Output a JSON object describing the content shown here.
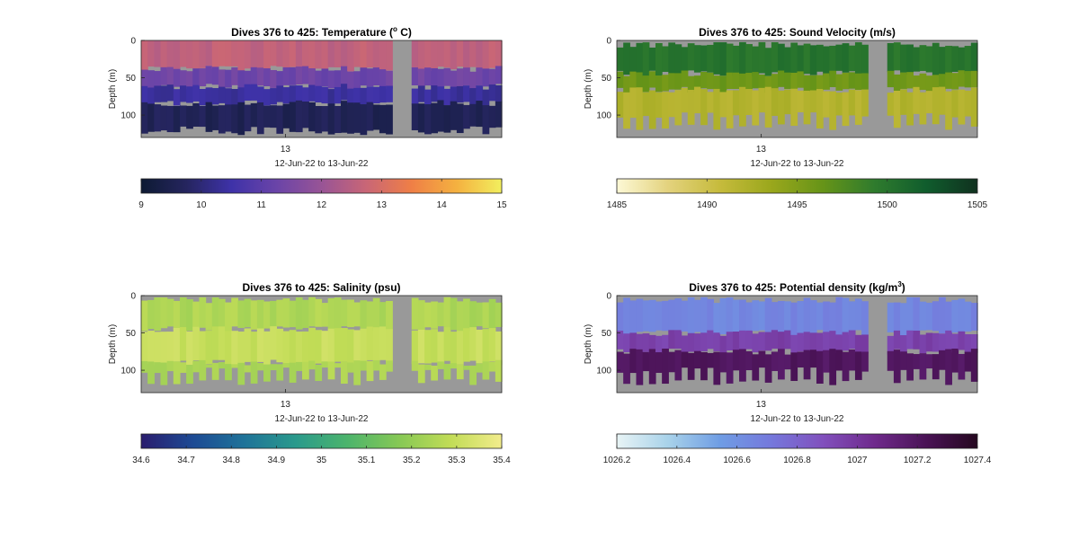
{
  "chart_data": [
    {
      "type": "heatmap",
      "title": "Dives 376 to 425: Temperature (",
      "title_sup": "o",
      "title_end": " C)",
      "ylabel": "Depth (m)",
      "ylim": [
        0,
        130
      ],
      "y_ticks": [
        0,
        50,
        100
      ],
      "x_ticks": [
        "13"
      ],
      "x_tick_pos": 0.4,
      "xlabel": "12-Jun-22 to 13-Jun-22",
      "colorbar": {
        "min": 9,
        "max": 15,
        "ticks": [
          "9",
          "10",
          "11",
          "12",
          "13",
          "14",
          "15"
        ],
        "colors": [
          "#0d1a33",
          "#25255e",
          "#3e32a8",
          "#6a44a8",
          "#985496",
          "#c96676",
          "#ef7f46",
          "#f4b140",
          "#f2ef5e"
        ]
      },
      "layers": [
        {
          "depth_top": 0,
          "depth_bottom": 38,
          "value": 12.6
        },
        {
          "depth_top": 38,
          "depth_bottom": 62,
          "value": 11.3
        },
        {
          "depth_top": 62,
          "depth_bottom": 84,
          "value": 10.4
        },
        {
          "depth_top": 84,
          "depth_bottom": 130,
          "value": 9.6
        }
      ],
      "gap": [
        0.7,
        0.74
      ]
    },
    {
      "type": "heatmap",
      "title": "Dives 376 to 425: Sound Velocity (m/s)",
      "title_sup": "",
      "title_end": "",
      "ylabel": "Depth (m)",
      "ylim": [
        0,
        130
      ],
      "y_ticks": [
        0,
        50,
        100
      ],
      "x_ticks": [
        "13"
      ],
      "x_tick_pos": 0.4,
      "xlabel": "12-Jun-22 to 13-Jun-22",
      "colorbar": {
        "min": 1485,
        "max": 1505,
        "ticks": [
          "1485",
          "1490",
          "1495",
          "1500",
          "1505"
        ],
        "colors": [
          "#fdf9d6",
          "#e3d27d",
          "#c6bb3c",
          "#9aa71c",
          "#669418",
          "#2f7b2d",
          "#105d2d",
          "#10311f"
        ]
      },
      "layers": [
        {
          "depth_top": 0,
          "depth_bottom": 44,
          "value": 1500
        },
        {
          "depth_top": 44,
          "depth_bottom": 66,
          "value": 1496
        },
        {
          "depth_top": 66,
          "depth_bottom": 130,
          "value": 1492
        }
      ],
      "gap": [
        0.7,
        0.74
      ]
    },
    {
      "type": "heatmap",
      "title": "Dives 376 to 425: Salinity (psu)",
      "title_sup": "",
      "title_end": "",
      "ylabel": "Depth (m)",
      "ylim": [
        0,
        130
      ],
      "y_ticks": [
        0,
        50,
        100
      ],
      "x_ticks": [
        "13"
      ],
      "x_tick_pos": 0.4,
      "xlabel": "12-Jun-22 to 13-Jun-22",
      "colorbar": {
        "min": 34.6,
        "max": 35.4,
        "ticks": [
          "34.6",
          "34.7",
          "34.8",
          "34.9",
          "35",
          "35.1",
          "35.2",
          "35.3",
          "35.4"
        ],
        "colors": [
          "#2a1d6e",
          "#1d4a94",
          "#1f7399",
          "#2a9a8c",
          "#4cb46c",
          "#86c855",
          "#c1dc56",
          "#f2ec8c"
        ]
      },
      "layers": [
        {
          "depth_top": 0,
          "depth_bottom": 45,
          "value": 35.25
        },
        {
          "depth_top": 45,
          "depth_bottom": 90,
          "value": 35.3
        },
        {
          "depth_top": 90,
          "depth_bottom": 130,
          "value": 35.25
        }
      ],
      "gap": [
        0.7,
        0.74
      ]
    },
    {
      "type": "heatmap",
      "title": "Dives 376 to 425: Potential density (kg/m",
      "title_sup": "3",
      "title_end": ")",
      "ylabel": "Depth (m)",
      "ylim": [
        0,
        130
      ],
      "y_ticks": [
        0,
        50,
        100
      ],
      "x_ticks": [
        "13"
      ],
      "x_tick_pos": 0.4,
      "xlabel": "12-Jun-22 to 13-Jun-22",
      "colorbar": {
        "min": 1026.2,
        "max": 1027.4,
        "ticks": [
          "1026.2",
          "1026.4",
          "1026.6",
          "1026.8",
          "1027",
          "1027.2",
          "1027.4"
        ],
        "colors": [
          "#e8f4f5",
          "#a8d2ea",
          "#6f9de4",
          "#7578dc",
          "#8150bd",
          "#6f2a8c",
          "#4a1356",
          "#25071f"
        ]
      },
      "layers": [
        {
          "depth_top": 0,
          "depth_bottom": 50,
          "value": 1026.65
        },
        {
          "depth_top": 50,
          "depth_bottom": 75,
          "value": 1026.95
        },
        {
          "depth_top": 75,
          "depth_bottom": 130,
          "value": 1027.2
        }
      ],
      "gap": [
        0.7,
        0.74
      ]
    }
  ]
}
